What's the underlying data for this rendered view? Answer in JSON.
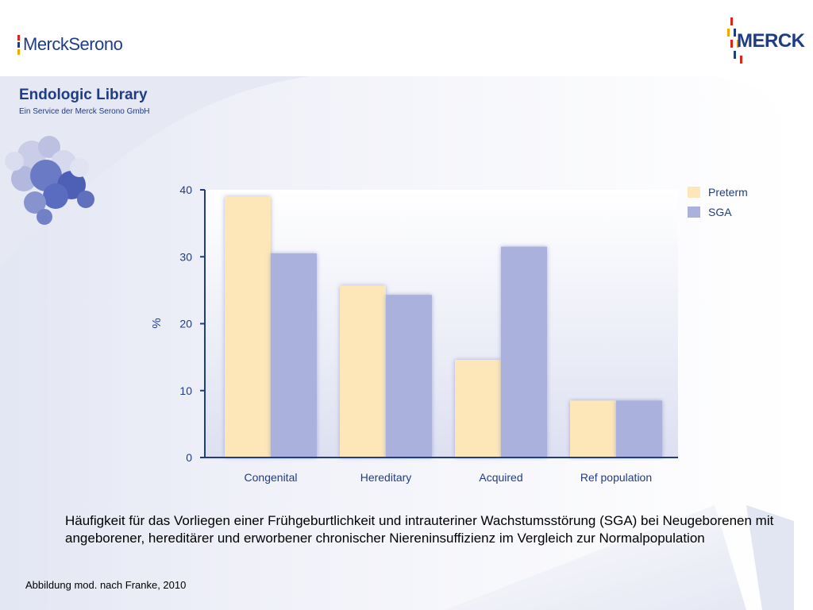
{
  "header": {
    "left_logo": "MerckSerono",
    "right_logo": "MERCK",
    "library_title": "Endologic Library",
    "library_subtitle": "Ein Service der Merck Serono GmbH"
  },
  "chart_data": {
    "type": "bar",
    "categories": [
      "Congenital",
      "Hereditary",
      "Acquired",
      "Ref population"
    ],
    "series": [
      {
        "name": "Preterm",
        "values": [
          39,
          25.7,
          14.6,
          8.5
        ],
        "color": "#fde7b8"
      },
      {
        "name": "SGA",
        "values": [
          30.5,
          24.3,
          31.5,
          8.5
        ],
        "color": "#a9b1dc"
      }
    ],
    "ylabel": "%",
    "ylim": [
      0,
      40
    ],
    "yticks": [
      0,
      10,
      20,
      30,
      40
    ],
    "legend_position": "top-right",
    "axis_color": "#1f3c86"
  },
  "caption": "Häufigkeit für das Vorliegen einer Frühgeburtlichkeit und intrauteriner Wachstumsstörung (SGA) bei Neugeborenen mit angeborener, hereditärer und erworbener chronischer Niereninsuffizienz im Vergleich zur Normalpopulation",
  "source": "Abbildung mod. nach Franke, 2010"
}
